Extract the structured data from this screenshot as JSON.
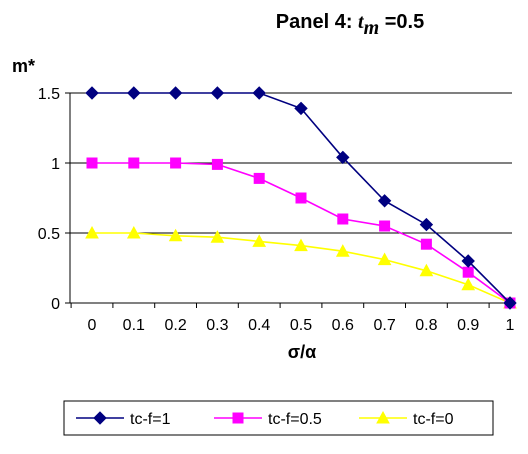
{
  "chart_data": {
    "type": "line",
    "title_prefix": "Panel 4: ",
    "title_var": "t",
    "title_sub": "m",
    "title_suffix": " =0.5",
    "xlabel": "σ/α",
    "ylabel": "m*",
    "x": [
      0,
      0.1,
      0.2,
      0.3,
      0.4,
      0.5,
      0.6,
      0.7,
      0.8,
      0.9,
      1
    ],
    "x_tick_labels": [
      "0",
      "0.1",
      "0.2",
      "0.3",
      "0.4",
      "0.5",
      "0.6",
      "0.7",
      "0.8",
      "0.9",
      "1"
    ],
    "y_ticks": [
      0,
      0.5,
      1,
      1.5
    ],
    "y_tick_labels": [
      "0",
      "0.5",
      "1",
      "1.5"
    ],
    "ylim": [
      0,
      1.5
    ],
    "grid": "horizontal",
    "legend_position": "bottom",
    "series": [
      {
        "name": "tc-f=1",
        "color": "#000080",
        "marker": "diamond",
        "values": [
          1.5,
          1.5,
          1.5,
          1.5,
          1.5,
          1.39,
          1.04,
          0.73,
          0.56,
          0.3,
          0.0
        ]
      },
      {
        "name": "tc-f=0.5",
        "color": "#ff00ff",
        "marker": "square",
        "values": [
          1.0,
          1.0,
          1.0,
          0.99,
          0.89,
          0.75,
          0.6,
          0.55,
          0.42,
          0.22,
          0.0
        ]
      },
      {
        "name": "tc-f=0",
        "color": "#ffff00",
        "marker": "triangle",
        "values": [
          0.5,
          0.5,
          0.48,
          0.47,
          0.44,
          0.41,
          0.37,
          0.31,
          0.23,
          0.13,
          0.0
        ]
      }
    ]
  }
}
